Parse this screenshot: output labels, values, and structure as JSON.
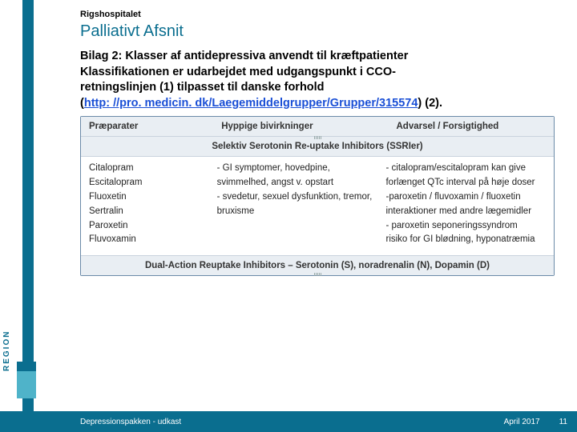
{
  "brand": {
    "region_text": "REGION"
  },
  "header": {
    "hospital": "Rigshospitalet",
    "department": "Palliativt Afsnit"
  },
  "heading": {
    "line1": "Bilag 2: Klasser af antidepressiva anvendt til kræftpatienter",
    "line2": "Klassifikationen er udarbejdet med udgangspunkt i CCO-",
    "line3": "retningslinjen (1) tilpasset til danske forhold",
    "line4_prefix": "(",
    "link_text": "http: //pro. medicin. dk/Laegemiddelgrupper/Grupper/315574",
    "line4_suffix": ") (2)."
  },
  "table": {
    "columns": [
      "Præparater",
      "Hyppige bivirkninger",
      "Advarsel / Forsigtighed"
    ],
    "section1_title": "Selektiv Serotonin Re-uptake Inhibitors (SSRIer)",
    "section2_title": "Dual-Action Reuptake Inhibitors – Serotonin (S), noradrenalin (N), Dopamin (D)",
    "col1_items": [
      "Citalopram",
      "Escitalopram",
      "Fluoxetin",
      "Sertralin",
      "Paroxetin",
      "Fluvoxamin"
    ],
    "col2_text": "- GI symptomer, hovedpine, svimmelhed, angst v. opstart\n- svedetur, sexuel dysfunktion, tremor, bruxisme",
    "col3_text": "- citalopram/escitalopram kan give forlænget QTc interval på høje doser\n-paroxetin / fluvoxamin / fluoxetin interaktioner med andre lægemidler\n- paroxetin seponeringssyndrom\n  risiko for GI blødning, hyponatræmia",
    "colors": {
      "accent": "#0a6e8f",
      "accent_light": "#4fb3c9",
      "header_bg": "#e9eef3",
      "border": "#6b8aa8",
      "link": "#1a4fd6"
    },
    "font_sizes": {
      "hospital": 11,
      "dept": 20,
      "heading": 14.5,
      "table": 11.5,
      "footer": 10
    }
  },
  "footer": {
    "left": "Depressionspakken - udkast",
    "date": "April 2017",
    "page": "11"
  }
}
